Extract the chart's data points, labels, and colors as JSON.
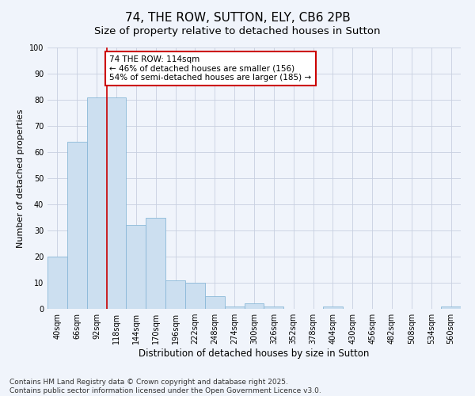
{
  "title": "74, THE ROW, SUTTON, ELY, CB6 2PB",
  "subtitle": "Size of property relative to detached houses in Sutton",
  "xlabel": "Distribution of detached houses by size in Sutton",
  "ylabel": "Number of detached properties",
  "categories": [
    "40sqm",
    "66sqm",
    "92sqm",
    "118sqm",
    "144sqm",
    "170sqm",
    "196sqm",
    "222sqm",
    "248sqm",
    "274sqm",
    "300sqm",
    "326sqm",
    "352sqm",
    "378sqm",
    "404sqm",
    "430sqm",
    "456sqm",
    "482sqm",
    "508sqm",
    "534sqm",
    "560sqm"
  ],
  "values": [
    20,
    64,
    81,
    81,
    32,
    35,
    11,
    10,
    5,
    1,
    2,
    1,
    0,
    0,
    1,
    0,
    0,
    0,
    0,
    0,
    1
  ],
  "bar_color": "#ccdff0",
  "bar_edge_color": "#8ab8d8",
  "background_color": "#f0f4fb",
  "grid_color": "#c8d0e0",
  "annotation_text": "74 THE ROW: 114sqm\n← 46% of detached houses are smaller (156)\n54% of semi-detached houses are larger (185) →",
  "redline_index": 3,
  "annotation_box_color": "#ffffff",
  "annotation_box_edge": "#cc0000",
  "redline_color": "#cc0000",
  "ylim": [
    0,
    100
  ],
  "yticks": [
    0,
    10,
    20,
    30,
    40,
    50,
    60,
    70,
    80,
    90,
    100
  ],
  "footnote": "Contains HM Land Registry data © Crown copyright and database right 2025.\nContains public sector information licensed under the Open Government Licence v3.0.",
  "title_fontsize": 11,
  "subtitle_fontsize": 9.5,
  "xlabel_fontsize": 8.5,
  "ylabel_fontsize": 8,
  "tick_fontsize": 7,
  "annotation_fontsize": 7.5,
  "footnote_fontsize": 6.5
}
